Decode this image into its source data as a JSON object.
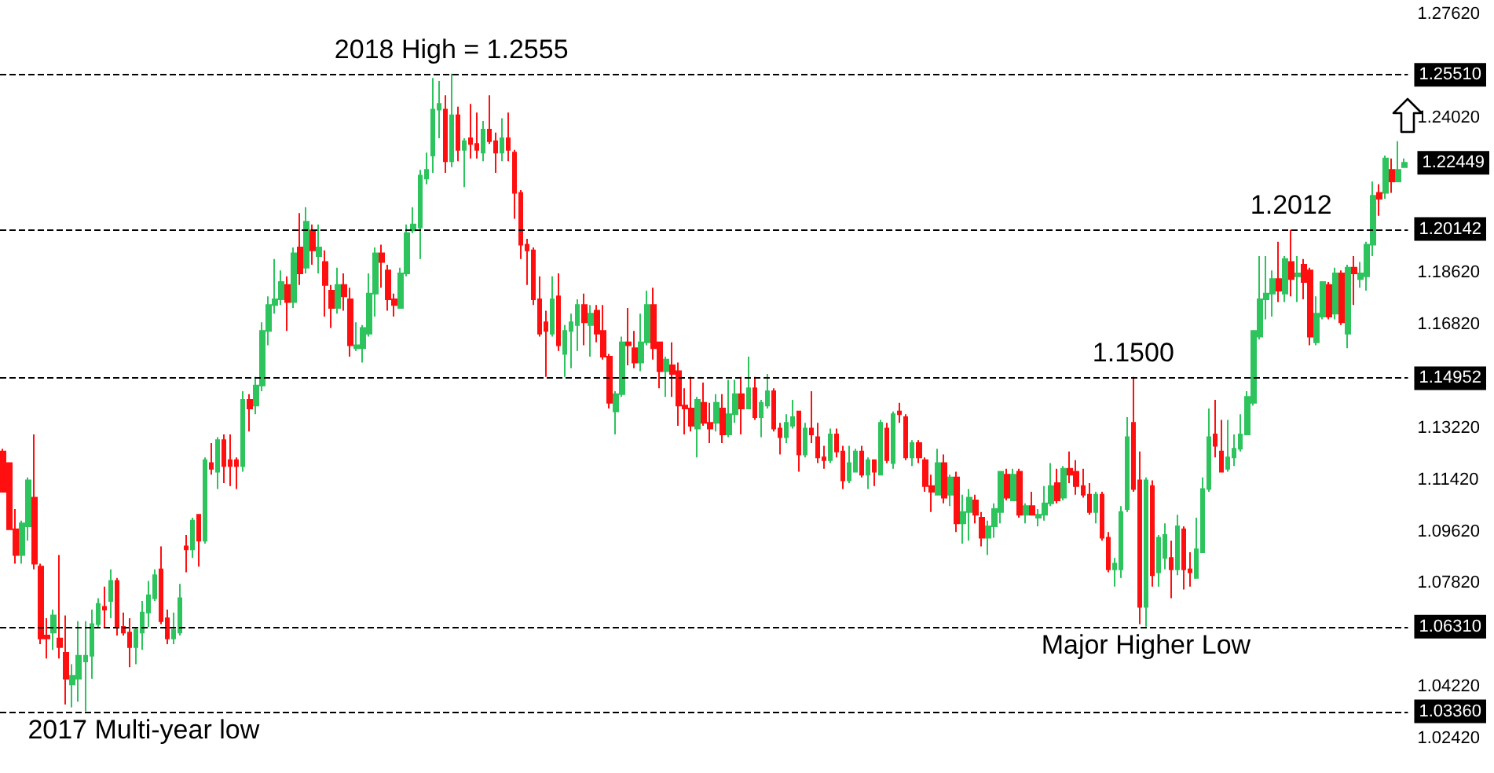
{
  "chart_data": {
    "type": "candlestick",
    "categories": [
      null,
      null,
      null,
      null,
      null,
      null,
      null,
      null,
      null,
      null,
      null,
      null,
      null,
      null,
      null,
      null,
      null,
      null,
      null,
      null,
      null,
      null,
      null,
      null,
      null,
      null,
      null,
      null,
      null,
      null,
      null,
      null,
      null,
      null,
      null,
      null,
      null,
      null,
      null,
      null,
      null,
      null,
      null,
      null,
      null,
      null,
      null,
      null,
      null,
      null,
      null,
      null,
      null,
      null,
      null,
      null,
      null,
      null,
      null,
      null,
      null,
      null,
      null,
      null,
      null,
      null,
      null,
      null,
      null,
      null,
      null,
      null,
      null,
      null,
      null,
      null,
      null,
      null,
      null,
      null,
      null,
      null,
      null,
      null,
      null,
      null,
      null,
      null,
      null,
      null,
      null,
      null,
      null,
      null,
      null,
      null,
      null,
      null,
      null,
      null,
      null,
      null,
      null,
      null,
      null,
      null,
      null,
      null,
      null,
      null,
      null,
      null,
      null,
      null,
      null,
      null,
      null,
      null,
      null,
      null,
      null,
      null,
      null,
      null,
      null,
      null,
      null,
      null,
      null,
      null,
      null,
      null,
      null,
      null,
      null,
      null,
      null,
      null,
      null,
      null,
      null,
      null,
      null,
      null,
      null,
      null,
      null,
      null,
      null,
      null,
      null,
      null,
      null,
      null,
      null,
      null,
      null,
      null,
      null,
      null,
      null,
      null,
      null,
      null,
      null,
      null,
      null,
      null,
      null,
      null,
      null,
      null,
      null,
      null,
      null,
      null,
      null,
      null,
      null,
      null,
      null,
      null,
      null,
      null,
      null,
      null,
      null,
      null,
      null,
      null,
      null,
      null,
      null,
      null,
      null,
      null,
      null,
      null,
      null,
      null,
      null,
      null,
      null,
      null,
      null,
      null,
      null,
      null,
      null,
      null,
      null,
      null,
      null,
      null,
      null,
      null,
      null,
      null,
      null,
      null,
      null,
      null,
      null
    ],
    "ohlc": [
      [
        1.124,
        1.125,
        1.11,
        1.11
      ],
      [
        1.12,
        1.12,
        1.097,
        1.097
      ],
      [
        1.097,
        1.104,
        1.085,
        1.088
      ],
      [
        1.088,
        1.1,
        1.085,
        1.099
      ],
      [
        1.098,
        1.115,
        1.093,
        1.114
      ],
      [
        1.108,
        1.13,
        1.083,
        1.085
      ],
      [
        1.084,
        1.085,
        1.057,
        1.059
      ],
      [
        1.06,
        1.066,
        1.052,
        1.059
      ],
      [
        1.061,
        1.069,
        1.055,
        1.067
      ],
      [
        1.059,
        1.088,
        1.052,
        1.056
      ],
      [
        1.054,
        1.067,
        1.036,
        1.045
      ],
      [
        1.043,
        1.05,
        1.035,
        1.046
      ],
      [
        1.045,
        1.065,
        1.037,
        1.053
      ],
      [
        1.051,
        1.065,
        1.0336,
        1.053
      ],
      [
        1.053,
        1.069,
        1.045,
        1.064
      ],
      [
        1.064,
        1.073,
        1.063,
        1.071
      ],
      [
        1.07,
        1.077,
        1.063,
        1.069
      ],
      [
        1.072,
        1.083,
        1.066,
        1.079
      ],
      [
        1.079,
        1.08,
        1.06,
        1.063
      ],
      [
        1.063,
        1.068,
        1.06,
        1.061
      ],
      [
        1.061,
        1.066,
        1.049,
        1.056
      ],
      [
        1.056,
        1.063,
        1.05,
        1.062
      ],
      [
        1.061,
        1.072,
        1.055,
        1.068
      ],
      [
        1.068,
        1.079,
        1.063,
        1.074
      ],
      [
        1.073,
        1.083,
        1.072,
        1.081
      ],
      [
        1.083,
        1.091,
        1.064,
        1.065
      ],
      [
        1.066,
        1.069,
        1.057,
        1.059
      ],
      [
        1.059,
        1.068,
        1.057,
        1.062
      ],
      [
        1.061,
        1.078,
        1.06,
        1.073
      ],
      [
        1.091,
        1.095,
        1.082,
        1.09
      ],
      [
        1.09,
        1.101,
        1.087,
        1.1
      ],
      [
        1.102,
        1.102,
        1.084,
        1.093
      ],
      [
        1.093,
        1.122,
        1.092,
        1.121
      ],
      [
        1.12,
        1.127,
        1.116,
        1.118
      ],
      [
        1.117,
        1.129,
        1.111,
        1.128
      ],
      [
        1.128,
        1.13,
        1.113,
        1.119
      ],
      [
        1.121,
        1.13,
        1.112,
        1.119
      ],
      [
        1.121,
        1.122,
        1.111,
        1.119
      ],
      [
        1.119,
        1.145,
        1.117,
        1.142
      ],
      [
        1.142,
        1.144,
        1.131,
        1.139
      ],
      [
        1.14,
        1.15,
        1.137,
        1.147
      ],
      [
        1.147,
        1.169,
        1.145,
        1.166
      ],
      [
        1.166,
        1.178,
        1.161,
        1.175
      ],
      [
        1.175,
        1.191,
        1.172,
        1.177
      ],
      [
        1.177,
        1.187,
        1.175,
        1.183
      ],
      [
        1.182,
        1.185,
        1.166,
        1.176
      ],
      [
        1.176,
        1.195,
        1.174,
        1.193
      ],
      [
        1.195,
        1.207,
        1.182,
        1.186
      ],
      [
        1.188,
        1.209,
        1.186,
        1.204
      ],
      [
        1.201,
        1.203,
        1.189,
        1.194
      ],
      [
        1.192,
        1.203,
        1.186,
        1.195
      ],
      [
        1.19,
        1.194,
        1.171,
        1.182
      ],
      [
        1.18,
        1.182,
        1.167,
        1.174
      ],
      [
        1.174,
        1.188,
        1.172,
        1.182
      ],
      [
        1.182,
        1.186,
        1.173,
        1.178
      ],
      [
        1.177,
        1.181,
        1.157,
        1.161
      ],
      [
        1.16,
        1.169,
        1.159,
        1.161
      ],
      [
        1.16,
        1.168,
        1.155,
        1.167
      ],
      [
        1.165,
        1.186,
        1.164,
        1.179
      ],
      [
        1.179,
        1.195,
        1.171,
        1.193
      ],
      [
        1.193,
        1.196,
        1.181,
        1.19
      ],
      [
        1.187,
        1.189,
        1.173,
        1.177
      ],
      [
        1.177,
        1.179,
        1.171,
        1.175
      ],
      [
        1.174,
        1.188,
        1.174,
        1.186
      ],
      [
        1.186,
        1.203,
        1.185,
        1.2
      ],
      [
        1.201,
        1.209,
        1.2,
        1.203
      ],
      [
        1.202,
        1.222,
        1.191,
        1.22
      ],
      [
        1.219,
        1.228,
        1.217,
        1.222
      ],
      [
        1.227,
        1.254,
        1.221,
        1.243
      ],
      [
        1.243,
        1.253,
        1.233,
        1.245
      ],
      [
        1.243,
        1.248,
        1.221,
        1.225
      ],
      [
        1.225,
        1.2555,
        1.223,
        1.241
      ],
      [
        1.241,
        1.244,
        1.225,
        1.229
      ],
      [
        1.229,
        1.233,
        1.216,
        1.232
      ],
      [
        1.233,
        1.245,
        1.226,
        1.231
      ],
      [
        1.231,
        1.242,
        1.226,
        1.229
      ],
      [
        1.228,
        1.239,
        1.225,
        1.236
      ],
      [
        1.236,
        1.248,
        1.231,
        1.232
      ],
      [
        1.232,
        1.235,
        1.221,
        1.228
      ],
      [
        1.228,
        1.24,
        1.225,
        1.233
      ],
      [
        1.233,
        1.242,
        1.225,
        1.229
      ],
      [
        1.228,
        1.229,
        1.205,
        1.214
      ],
      [
        1.214,
        1.215,
        1.191,
        1.196
      ],
      [
        1.196,
        1.198,
        1.182,
        1.194
      ],
      [
        1.194,
        1.195,
        1.175,
        1.177
      ],
      [
        1.177,
        1.185,
        1.164,
        1.165
      ],
      [
        1.169,
        1.173,
        1.15,
        1.166
      ],
      [
        1.165,
        1.185,
        1.164,
        1.177
      ],
      [
        1.178,
        1.186,
        1.159,
        1.161
      ],
      [
        1.158,
        1.168,
        1.15,
        1.166
      ],
      [
        1.166,
        1.172,
        1.153,
        1.169
      ],
      [
        1.168,
        1.177,
        1.159,
        1.175
      ],
      [
        1.175,
        1.179,
        1.161,
        1.169
      ],
      [
        1.168,
        1.175,
        1.157,
        1.172
      ],
      [
        1.173,
        1.175,
        1.162,
        1.165
      ],
      [
        1.166,
        1.175,
        1.156,
        1.157
      ],
      [
        1.157,
        1.158,
        1.139,
        1.141
      ],
      [
        1.138,
        1.145,
        1.13,
        1.144
      ],
      [
        1.144,
        1.164,
        1.143,
        1.162
      ],
      [
        1.162,
        1.174,
        1.154,
        1.161
      ],
      [
        1.16,
        1.166,
        1.153,
        1.155
      ],
      [
        1.155,
        1.172,
        1.152,
        1.162
      ],
      [
        1.162,
        1.18,
        1.161,
        1.175
      ],
      [
        1.175,
        1.181,
        1.156,
        1.16
      ],
      [
        1.162,
        1.162,
        1.146,
        1.152
      ],
      [
        1.152,
        1.157,
        1.143,
        1.156
      ],
      [
        1.154,
        1.162,
        1.143,
        1.151
      ],
      [
        1.152,
        1.155,
        1.133,
        1.14
      ],
      [
        1.14,
        1.146,
        1.13,
        1.139
      ],
      [
        1.139,
        1.15,
        1.131,
        1.133
      ],
      [
        1.132,
        1.143,
        1.122,
        1.142
      ],
      [
        1.141,
        1.148,
        1.133,
        1.134
      ],
      [
        1.134,
        1.141,
        1.127,
        1.132
      ],
      [
        1.134,
        1.144,
        1.131,
        1.141
      ],
      [
        1.139,
        1.144,
        1.127,
        1.13
      ],
      [
        1.13,
        1.149,
        1.129,
        1.137
      ],
      [
        1.137,
        1.149,
        1.134,
        1.144
      ],
      [
        1.144,
        1.15,
        1.13,
        1.139
      ],
      [
        1.139,
        1.157,
        1.139,
        1.146
      ],
      [
        1.146,
        1.15,
        1.135,
        1.136
      ],
      [
        1.136,
        1.142,
        1.129,
        1.141
      ],
      [
        1.14,
        1.151,
        1.139,
        1.145
      ],
      [
        1.145,
        1.146,
        1.131,
        1.132
      ],
      [
        1.132,
        1.134,
        1.123,
        1.129
      ],
      [
        1.129,
        1.137,
        1.127,
        1.134
      ],
      [
        1.133,
        1.142,
        1.132,
        1.136
      ],
      [
        1.138,
        1.138,
        1.117,
        1.123
      ],
      [
        1.123,
        1.134,
        1.122,
        1.132
      ],
      [
        1.132,
        1.145,
        1.127,
        1.13
      ],
      [
        1.129,
        1.134,
        1.12,
        1.122
      ],
      [
        1.122,
        1.126,
        1.118,
        1.121
      ],
      [
        1.121,
        1.132,
        1.12,
        1.13
      ],
      [
        1.13,
        1.132,
        1.122,
        1.124
      ],
      [
        1.124,
        1.126,
        1.111,
        1.114
      ],
      [
        1.114,
        1.126,
        1.113,
        1.12
      ],
      [
        1.117,
        1.125,
        1.117,
        1.124
      ],
      [
        1.124,
        1.126,
        1.115,
        1.116
      ],
      [
        1.116,
        1.122,
        1.111,
        1.121
      ],
      [
        1.121,
        1.121,
        1.112,
        1.117
      ],
      [
        1.116,
        1.135,
        1.116,
        1.134
      ],
      [
        1.132,
        1.134,
        1.12,
        1.121
      ],
      [
        1.12,
        1.138,
        1.118,
        1.137
      ],
      [
        1.138,
        1.141,
        1.134,
        1.137
      ],
      [
        1.136,
        1.137,
        1.121,
        1.122
      ],
      [
        1.122,
        1.128,
        1.119,
        1.127
      ],
      [
        1.127,
        1.128,
        1.12,
        1.122
      ],
      [
        1.121,
        1.122,
        1.11,
        1.112
      ],
      [
        1.112,
        1.116,
        1.103,
        1.11
      ],
      [
        1.109,
        1.125,
        1.109,
        1.12
      ],
      [
        1.12,
        1.123,
        1.106,
        1.108
      ],
      [
        1.109,
        1.116,
        1.105,
        1.115
      ],
      [
        1.115,
        1.117,
        1.096,
        1.099
      ],
      [
        1.099,
        1.109,
        1.092,
        1.103
      ],
      [
        1.103,
        1.111,
        1.093,
        1.108
      ],
      [
        1.107,
        1.109,
        1.099,
        1.102
      ],
      [
        1.101,
        1.103,
        1.091,
        1.094
      ],
      [
        1.094,
        1.1,
        1.088,
        1.098
      ],
      [
        1.098,
        1.106,
        1.094,
        1.104
      ],
      [
        1.103,
        1.117,
        1.099,
        1.117
      ],
      [
        1.116,
        1.118,
        1.107,
        1.108
      ],
      [
        1.107,
        1.118,
        1.107,
        1.116
      ],
      [
        1.117,
        1.118,
        1.101,
        1.102
      ],
      [
        1.102,
        1.106,
        1.099,
        1.105
      ],
      [
        1.105,
        1.11,
        1.102,
        1.102
      ],
      [
        1.101,
        1.104,
        1.098,
        1.102
      ],
      [
        1.102,
        1.112,
        1.1,
        1.106
      ],
      [
        1.106,
        1.12,
        1.105,
        1.112
      ],
      [
        1.113,
        1.118,
        1.106,
        1.107
      ],
      [
        1.108,
        1.119,
        1.107,
        1.118
      ],
      [
        1.118,
        1.124,
        1.113,
        1.116
      ],
      [
        1.117,
        1.121,
        1.109,
        1.112
      ],
      [
        1.112,
        1.118,
        1.108,
        1.109
      ],
      [
        1.109,
        1.113,
        1.102,
        1.103
      ],
      [
        1.103,
        1.11,
        1.099,
        1.109
      ],
      [
        1.109,
        1.11,
        1.093,
        1.094
      ],
      [
        1.094,
        1.096,
        1.082,
        1.083
      ],
      [
        1.083,
        1.087,
        1.077,
        1.085
      ],
      [
        1.083,
        1.105,
        1.08,
        1.103
      ],
      [
        1.104,
        1.136,
        1.103,
        1.129
      ],
      [
        1.134,
        1.15,
        1.11,
        1.111
      ],
      [
        1.114,
        1.124,
        1.064,
        1.07
      ],
      [
        1.07,
        1.115,
        1.0631,
        1.114
      ],
      [
        1.112,
        1.114,
        1.077,
        1.081
      ],
      [
        1.082,
        1.095,
        1.077,
        1.094
      ],
      [
        1.087,
        1.099,
        1.083,
        1.095
      ],
      [
        1.087,
        1.093,
        1.073,
        1.083
      ],
      [
        1.083,
        1.102,
        1.081,
        1.098
      ],
      [
        1.097,
        1.098,
        1.076,
        1.083
      ],
      [
        1.083,
        1.089,
        1.077,
        1.082
      ],
      [
        1.08,
        1.101,
        1.08,
        1.09
      ],
      [
        1.089,
        1.115,
        1.089,
        1.111
      ],
      [
        1.111,
        1.139,
        1.11,
        1.129
      ],
      [
        1.13,
        1.142,
        1.122,
        1.126
      ],
      [
        1.124,
        1.135,
        1.117,
        1.117
      ],
      [
        1.118,
        1.135,
        1.117,
        1.122
      ],
      [
        1.122,
        1.13,
        1.119,
        1.125
      ],
      [
        1.125,
        1.137,
        1.124,
        1.13
      ],
      [
        1.13,
        1.145,
        1.13,
        1.143
      ],
      [
        1.141,
        1.166,
        1.14,
        1.166
      ],
      [
        1.164,
        1.192,
        1.163,
        1.177
      ],
      [
        1.177,
        1.192,
        1.17,
        1.179
      ],
      [
        1.179,
        1.187,
        1.171,
        1.184
      ],
      [
        1.184,
        1.197,
        1.176,
        1.18
      ],
      [
        1.179,
        1.192,
        1.176,
        1.191
      ],
      [
        1.19,
        1.2012,
        1.178,
        1.184
      ],
      [
        1.185,
        1.192,
        1.176,
        1.186
      ],
      [
        1.189,
        1.191,
        1.177,
        1.183
      ],
      [
        1.187,
        1.188,
        1.161,
        1.164
      ],
      [
        1.162,
        1.178,
        1.161,
        1.172
      ],
      [
        1.171,
        1.183,
        1.17,
        1.183
      ],
      [
        1.182,
        1.183,
        1.17,
        1.171
      ],
      [
        1.172,
        1.188,
        1.17,
        1.186
      ],
      [
        1.186,
        1.187,
        1.168,
        1.169
      ],
      [
        1.165,
        1.189,
        1.16,
        1.188
      ],
      [
        1.188,
        1.192,
        1.175,
        1.186
      ],
      [
        1.184,
        1.19,
        1.181,
        1.186
      ],
      [
        1.185,
        1.197,
        1.18,
        1.196
      ],
      [
        1.196,
        1.218,
        1.192,
        1.213
      ],
      [
        1.214,
        1.217,
        1.206,
        1.212
      ],
      [
        1.214,
        1.227,
        1.212,
        1.226
      ],
      [
        1.222,
        1.226,
        1.214,
        1.218
      ],
      [
        1.218,
        1.232,
        1.218,
        1.222
      ],
      [
        1.223,
        1.226,
        1.223,
        1.22449
      ]
    ],
    "ylim": [
      1.0242,
      1.2762
    ],
    "yticks": [
      {
        "value": 1.2762,
        "label": "1.27620"
      },
      {
        "value": 1.2402,
        "label": "1.24020"
      },
      {
        "value": 1.22449,
        "label": "1.22449"
      },
      {
        "value": 1.1862,
        "label": "1.18620"
      },
      {
        "value": 1.1682,
        "label": "1.16820"
      },
      {
        "value": 1.1322,
        "label": "1.13220"
      },
      {
        "value": 1.1142,
        "label": "1.11420"
      },
      {
        "value": 1.0962,
        "label": "1.09620"
      },
      {
        "value": 1.0782,
        "label": "1.07820"
      },
      {
        "value": 1.0422,
        "label": "1.04220"
      },
      {
        "value": 1.0242,
        "label": "1.02420"
      }
    ],
    "tick_labels": "y",
    "grid": false,
    "ref_lines": [
      {
        "axis": "y",
        "value": 1.2551,
        "label": "1.25510",
        "color": "#000000",
        "line_style": "dashed"
      },
      {
        "axis": "y",
        "value": 1.20142,
        "label": "1.20142",
        "color": "#000000",
        "line_style": "dashed"
      },
      {
        "axis": "y",
        "value": 1.14952,
        "label": "1.14952",
        "color": "#000000",
        "line_style": "dashed"
      },
      {
        "axis": "y",
        "value": 1.0631,
        "label": "1.06310",
        "color": "#000000",
        "line_style": "dashed"
      },
      {
        "axis": "y",
        "value": 1.0336,
        "label": "1.03360",
        "color": "#000000",
        "line_style": "dashed"
      }
    ],
    "annotations": [
      {
        "text": "2018 High = 1.2555",
        "y": 1.2555
      },
      {
        "text": "2017 Multi-year low",
        "y": 1.0336
      },
      {
        "text": "1.1500",
        "y": 1.15
      },
      {
        "text": "1.2012",
        "y": 1.2012
      },
      {
        "text": "Major Higher Low",
        "y": 1.0631
      }
    ]
  }
}
